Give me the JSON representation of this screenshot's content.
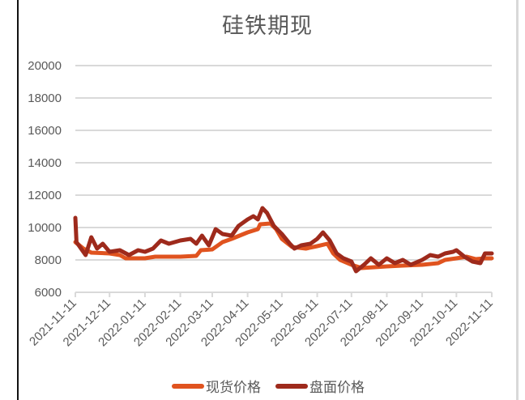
{
  "chart_data": {
    "type": "line",
    "title": "硅铁期现",
    "xlabel": "",
    "ylabel": "",
    "ylim": [
      6000,
      20000
    ],
    "yticks": [
      6000,
      8000,
      10000,
      12000,
      14000,
      16000,
      18000,
      20000
    ],
    "grid": true,
    "legend_position": "bottom",
    "categories": [
      "2021-11-11",
      "2021-12-11",
      "2022-01-11",
      "2022-02-11",
      "2022-03-11",
      "2022-04-11",
      "2022-05-11",
      "2022-06-11",
      "2022-07-11",
      "2022-08-11",
      "2022-09-11",
      "2022-10-11",
      "2022-11-11"
    ],
    "series": [
      {
        "name": "现货价格",
        "color": "#E0531F",
        "points": [
          [
            "2021-11-11",
            9100
          ],
          [
            "2021-11-18",
            8700
          ],
          [
            "2021-11-25",
            8450
          ],
          [
            "2021-12-11",
            8400
          ],
          [
            "2021-12-20",
            8300
          ],
          [
            "2021-12-25",
            8100
          ],
          [
            "2022-01-11",
            8100
          ],
          [
            "2022-01-20",
            8200
          ],
          [
            "2022-02-11",
            8200
          ],
          [
            "2022-02-25",
            8250
          ],
          [
            "2022-03-01",
            8600
          ],
          [
            "2022-03-11",
            8650
          ],
          [
            "2022-03-20",
            9100
          ],
          [
            "2022-03-28",
            9300
          ],
          [
            "2022-04-11",
            9700
          ],
          [
            "2022-04-20",
            9900
          ],
          [
            "2022-04-22",
            10200
          ],
          [
            "2022-05-01",
            10250
          ],
          [
            "2022-05-06",
            9900
          ],
          [
            "2022-05-11",
            9300
          ],
          [
            "2022-05-20",
            8800
          ],
          [
            "2022-06-01",
            8700
          ],
          [
            "2022-06-11",
            8850
          ],
          [
            "2022-06-20",
            9000
          ],
          [
            "2022-06-25",
            8400
          ],
          [
            "2022-07-01",
            8000
          ],
          [
            "2022-07-11",
            7700
          ],
          [
            "2022-07-20",
            7500
          ],
          [
            "2022-08-11",
            7600
          ],
          [
            "2022-08-25",
            7650
          ],
          [
            "2022-09-11",
            7700
          ],
          [
            "2022-09-25",
            7800
          ],
          [
            "2022-10-01",
            8000
          ],
          [
            "2022-10-11",
            8100
          ],
          [
            "2022-10-20",
            8200
          ],
          [
            "2022-10-28",
            8050
          ],
          [
            "2022-11-05",
            8100
          ],
          [
            "2022-11-11",
            8100
          ]
        ]
      },
      {
        "name": "盘面价格",
        "color": "#9E2A1C",
        "points": [
          [
            "2021-11-11",
            10600
          ],
          [
            "2021-11-12",
            9100
          ],
          [
            "2021-11-16",
            8700
          ],
          [
            "2021-11-20",
            8300
          ],
          [
            "2021-11-25",
            9400
          ],
          [
            "2021-11-30",
            8700
          ],
          [
            "2021-12-05",
            9000
          ],
          [
            "2021-12-11",
            8500
          ],
          [
            "2021-12-20",
            8600
          ],
          [
            "2021-12-28",
            8300
          ],
          [
            "2022-01-05",
            8600
          ],
          [
            "2022-01-11",
            8500
          ],
          [
            "2022-01-18",
            8700
          ],
          [
            "2022-01-25",
            9200
          ],
          [
            "2022-02-01",
            9000
          ],
          [
            "2022-02-11",
            9200
          ],
          [
            "2022-02-20",
            9300
          ],
          [
            "2022-02-25",
            9000
          ],
          [
            "2022-03-02",
            9500
          ],
          [
            "2022-03-08",
            8900
          ],
          [
            "2022-03-14",
            9900
          ],
          [
            "2022-03-20",
            9600
          ],
          [
            "2022-03-28",
            9500
          ],
          [
            "2022-04-03",
            10100
          ],
          [
            "2022-04-11",
            10500
          ],
          [
            "2022-04-16",
            10700
          ],
          [
            "2022-04-20",
            10500
          ],
          [
            "2022-04-24",
            11200
          ],
          [
            "2022-04-28",
            10900
          ],
          [
            "2022-05-04",
            10100
          ],
          [
            "2022-05-11",
            9600
          ],
          [
            "2022-05-18",
            9000
          ],
          [
            "2022-05-22",
            8700
          ],
          [
            "2022-05-28",
            8900
          ],
          [
            "2022-06-05",
            9000
          ],
          [
            "2022-06-11",
            9300
          ],
          [
            "2022-06-16",
            9700
          ],
          [
            "2022-06-22",
            9200
          ],
          [
            "2022-06-28",
            8400
          ],
          [
            "2022-07-04",
            8100
          ],
          [
            "2022-07-11",
            7900
          ],
          [
            "2022-07-15",
            7300
          ],
          [
            "2022-07-22",
            7700
          ],
          [
            "2022-07-28",
            8100
          ],
          [
            "2022-08-04",
            7700
          ],
          [
            "2022-08-11",
            8100
          ],
          [
            "2022-08-18",
            7800
          ],
          [
            "2022-08-25",
            8000
          ],
          [
            "2022-09-01",
            7700
          ],
          [
            "2022-09-11",
            8000
          ],
          [
            "2022-09-18",
            8300
          ],
          [
            "2022-09-25",
            8200
          ],
          [
            "2022-10-01",
            8400
          ],
          [
            "2022-10-08",
            8500
          ],
          [
            "2022-10-11",
            8600
          ],
          [
            "2022-10-18",
            8200
          ],
          [
            "2022-10-25",
            7900
          ],
          [
            "2022-11-01",
            7800
          ],
          [
            "2022-11-05",
            8400
          ],
          [
            "2022-11-11",
            8400
          ]
        ]
      }
    ]
  },
  "legend": {
    "items": [
      {
        "label": "现货价格",
        "color": "#E0531F"
      },
      {
        "label": "盘面价格",
        "color": "#9E2A1C"
      }
    ]
  },
  "colors": {
    "grid": "#d9d9d9",
    "text": "#595959",
    "frame_left": "#111111",
    "frame_right": "#d9d9d9"
  }
}
